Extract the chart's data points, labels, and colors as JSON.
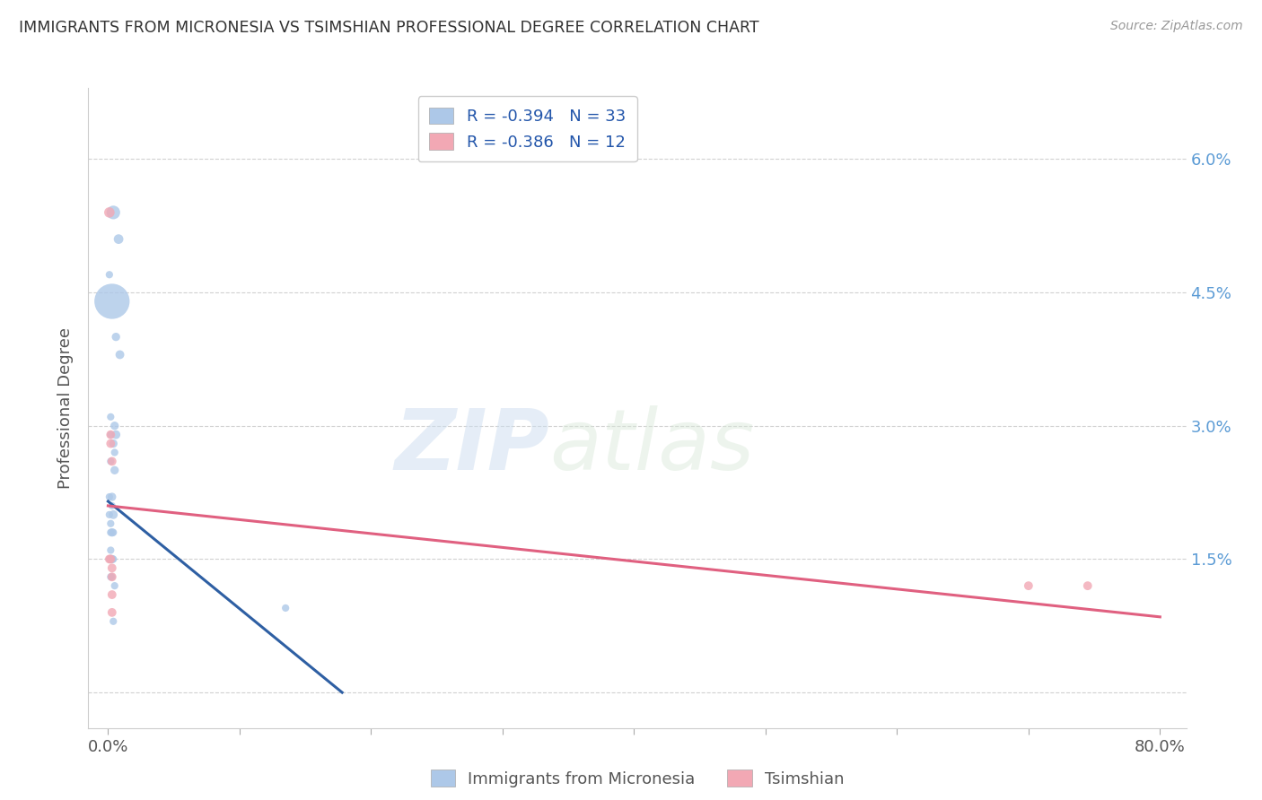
{
  "title": "IMMIGRANTS FROM MICRONESIA VS TSIMSHIAN PROFESSIONAL DEGREE CORRELATION CHART",
  "source": "Source: ZipAtlas.com",
  "ylabel": "Professional Degree",
  "y_ticks": [
    0.0,
    0.015,
    0.03,
    0.045,
    0.06
  ],
  "y_tick_labels": [
    "",
    "1.5%",
    "3.0%",
    "4.5%",
    "6.0%"
  ],
  "legend_blue_r": "R = -0.394",
  "legend_blue_n": "N = 33",
  "legend_pink_r": "R = -0.386",
  "legend_pink_n": "N = 12",
  "blue_color": "#adc8e8",
  "blue_line_color": "#2e5fa3",
  "pink_color": "#f2a8b4",
  "pink_line_color": "#e06080",
  "watermark_zip": "ZIP",
  "watermark_atlas": "atlas",
  "blue_points": [
    [
      0.004,
      0.054,
      120
    ],
    [
      0.008,
      0.051,
      60
    ],
    [
      0.001,
      0.047,
      35
    ],
    [
      0.003,
      0.044,
      800
    ],
    [
      0.006,
      0.04,
      45
    ],
    [
      0.009,
      0.038,
      50
    ],
    [
      0.002,
      0.031,
      35
    ],
    [
      0.005,
      0.03,
      45
    ],
    [
      0.002,
      0.029,
      35
    ],
    [
      0.006,
      0.029,
      50
    ],
    [
      0.004,
      0.028,
      45
    ],
    [
      0.005,
      0.027,
      35
    ],
    [
      0.002,
      0.026,
      35
    ],
    [
      0.005,
      0.025,
      45
    ],
    [
      0.001,
      0.022,
      35
    ],
    [
      0.003,
      0.022,
      45
    ],
    [
      0.003,
      0.021,
      35
    ],
    [
      0.001,
      0.02,
      35
    ],
    [
      0.004,
      0.02,
      50
    ],
    [
      0.002,
      0.019,
      35
    ],
    [
      0.002,
      0.018,
      35
    ],
    [
      0.003,
      0.018,
      45
    ],
    [
      0.004,
      0.018,
      35
    ],
    [
      0.002,
      0.016,
      35
    ],
    [
      0.001,
      0.015,
      35
    ],
    [
      0.002,
      0.015,
      45
    ],
    [
      0.003,
      0.015,
      45
    ],
    [
      0.004,
      0.015,
      35
    ],
    [
      0.002,
      0.013,
      35
    ],
    [
      0.003,
      0.013,
      35
    ],
    [
      0.005,
      0.012,
      35
    ],
    [
      0.135,
      0.0095,
      35
    ],
    [
      0.004,
      0.008,
      35
    ]
  ],
  "pink_points": [
    [
      0.001,
      0.054,
      70
    ],
    [
      0.002,
      0.029,
      50
    ],
    [
      0.002,
      0.028,
      50
    ],
    [
      0.003,
      0.026,
      50
    ],
    [
      0.001,
      0.015,
      50
    ],
    [
      0.002,
      0.015,
      50
    ],
    [
      0.003,
      0.014,
      50
    ],
    [
      0.003,
      0.013,
      50
    ],
    [
      0.003,
      0.011,
      50
    ],
    [
      0.003,
      0.009,
      50
    ],
    [
      0.7,
      0.012,
      50
    ],
    [
      0.745,
      0.012,
      50
    ]
  ],
  "blue_line_x": [
    0.0,
    0.178
  ],
  "blue_line_y": [
    0.0215,
    0.0
  ],
  "pink_line_x": [
    0.0,
    0.8
  ],
  "pink_line_y": [
    0.021,
    0.0085
  ],
  "xlim": [
    -0.015,
    0.82
  ],
  "ylim": [
    -0.004,
    0.068
  ],
  "bg_color": "#ffffff",
  "title_color": "#333333",
  "right_label_color": "#5b9bd5",
  "source_color": "#999999"
}
